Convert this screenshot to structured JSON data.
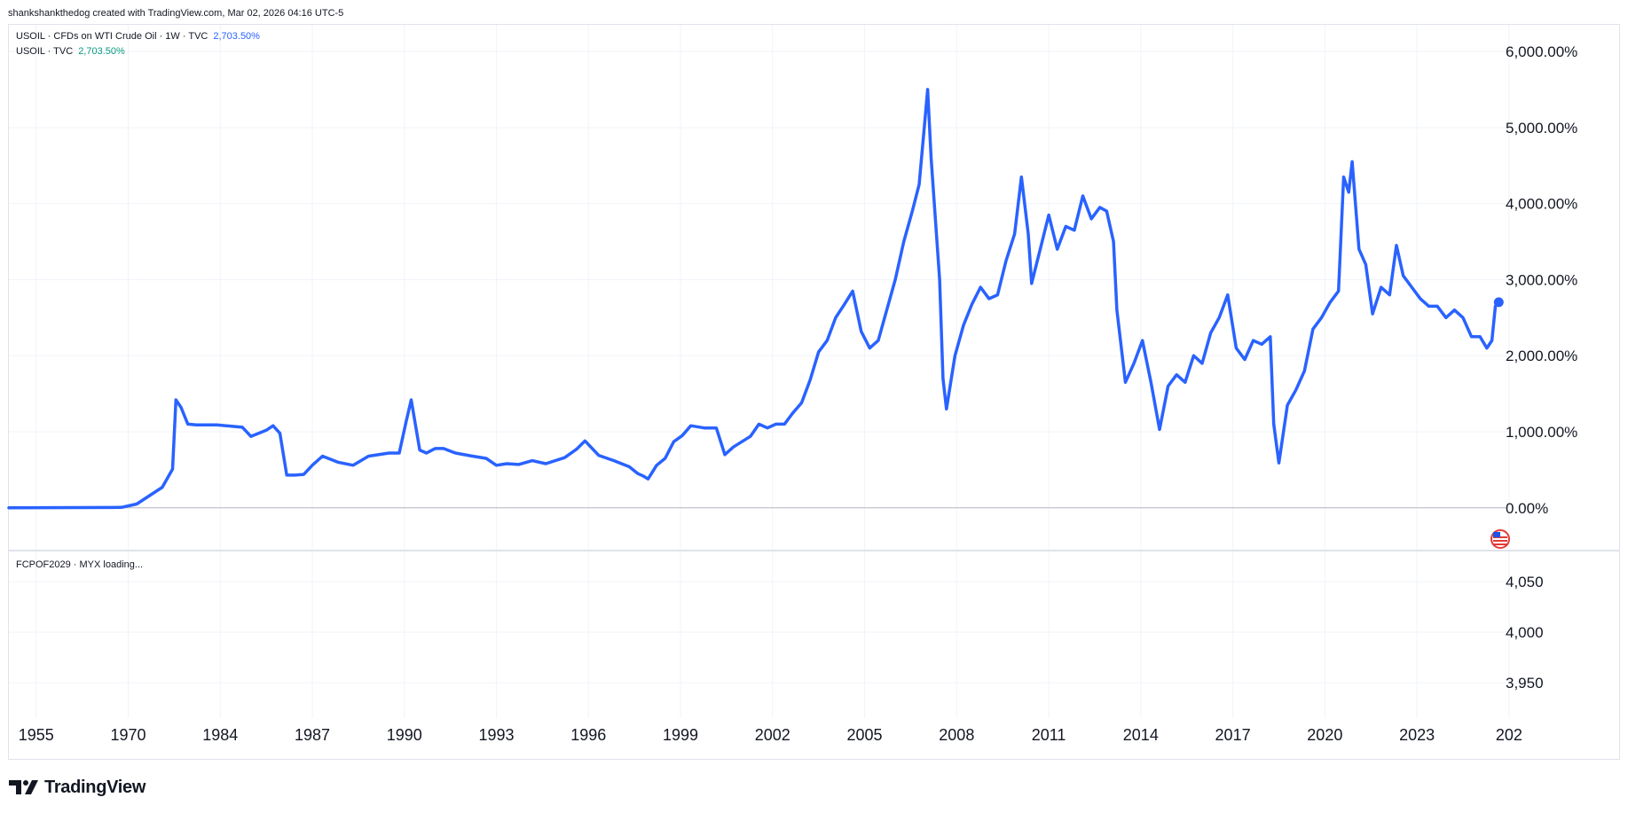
{
  "credit": "shankshankthedog created with TradingView.com, Mar 02, 2026 04:16 UTC-5",
  "legend": {
    "main_label": "USOIL · CFDs on WTI Crude Oil · 1W · TVC",
    "main_value": "2,703.50%",
    "compare_label": "USOIL · TVC",
    "compare_value": "2,703.50%",
    "lower_label": "FCPOF2029 · MYX loading..."
  },
  "brand": "TradingView",
  "colors": {
    "line": "#2962ff",
    "compare_value": "#089981",
    "grid": "#f0f3fa",
    "baseline": "#b2b5be",
    "flag_red": "#e53935"
  },
  "chart_data": {
    "type": "line",
    "series": [
      {
        "values_unit": "%",
        "points": [
          [
            0.0,
            0
          ],
          [
            6.6,
            6
          ],
          [
            7.5,
            50
          ],
          [
            9.0,
            270
          ],
          [
            9.6,
            510
          ],
          [
            9.8,
            1420
          ],
          [
            10.1,
            1320
          ],
          [
            10.5,
            1100
          ],
          [
            11.0,
            1090
          ],
          [
            12.2,
            1090
          ],
          [
            13.7,
            1060
          ],
          [
            14.2,
            940
          ],
          [
            15.1,
            1020
          ],
          [
            15.5,
            1080
          ],
          [
            15.9,
            980
          ],
          [
            16.3,
            430
          ],
          [
            16.8,
            430
          ],
          [
            17.3,
            440
          ],
          [
            17.8,
            560
          ],
          [
            18.4,
            680
          ],
          [
            19.3,
            600
          ],
          [
            20.2,
            560
          ],
          [
            21.1,
            680
          ],
          [
            22.3,
            720
          ],
          [
            22.9,
            720
          ],
          [
            23.3,
            1130
          ],
          [
            23.6,
            1420
          ],
          [
            24.1,
            760
          ],
          [
            24.5,
            720
          ],
          [
            25.0,
            780
          ],
          [
            25.5,
            780
          ],
          [
            26.2,
            720
          ],
          [
            27.2,
            680
          ],
          [
            28.0,
            650
          ],
          [
            28.6,
            560
          ],
          [
            29.2,
            580
          ],
          [
            29.9,
            570
          ],
          [
            30.7,
            620
          ],
          [
            31.5,
            580
          ],
          [
            32.6,
            660
          ],
          [
            33.3,
            770
          ],
          [
            33.8,
            880
          ],
          [
            34.6,
            690
          ],
          [
            35.5,
            620
          ],
          [
            36.4,
            540
          ],
          [
            36.9,
            450
          ],
          [
            37.2,
            420
          ],
          [
            37.5,
            380
          ],
          [
            38.0,
            560
          ],
          [
            38.5,
            650
          ],
          [
            39.0,
            870
          ],
          [
            39.5,
            950
          ],
          [
            40.0,
            1080
          ],
          [
            40.8,
            1050
          ],
          [
            41.5,
            1050
          ],
          [
            42.0,
            700
          ],
          [
            42.5,
            800
          ],
          [
            43.0,
            870
          ],
          [
            43.5,
            940
          ],
          [
            44.0,
            1100
          ],
          [
            44.5,
            1050
          ],
          [
            45.0,
            1100
          ],
          [
            45.5,
            1100
          ],
          [
            46.0,
            1250
          ],
          [
            46.5,
            1380
          ],
          [
            47.0,
            1680
          ],
          [
            47.5,
            2050
          ],
          [
            48.0,
            2200
          ],
          [
            48.5,
            2500
          ],
          [
            49.0,
            2670
          ],
          [
            49.5,
            2850
          ],
          [
            50.0,
            2320
          ],
          [
            50.5,
            2100
          ],
          [
            51.0,
            2200
          ],
          [
            51.5,
            2600
          ],
          [
            52.0,
            3000
          ],
          [
            52.5,
            3500
          ],
          [
            53.0,
            3900
          ],
          [
            53.4,
            4250
          ],
          [
            53.7,
            5000
          ],
          [
            53.9,
            5500
          ],
          [
            54.1,
            4600
          ],
          [
            54.6,
            3000
          ],
          [
            54.8,
            1700
          ],
          [
            55.0,
            1300
          ],
          [
            55.5,
            2000
          ],
          [
            56.0,
            2400
          ],
          [
            56.5,
            2680
          ],
          [
            57.0,
            2900
          ],
          [
            57.5,
            2750
          ],
          [
            58.0,
            2800
          ],
          [
            58.5,
            3250
          ],
          [
            59.0,
            3600
          ],
          [
            59.4,
            4350
          ],
          [
            59.8,
            3600
          ],
          [
            60.0,
            2950
          ],
          [
            60.5,
            3400
          ],
          [
            61.0,
            3850
          ],
          [
            61.5,
            3400
          ],
          [
            62.0,
            3700
          ],
          [
            62.5,
            3650
          ],
          [
            63.0,
            4100
          ],
          [
            63.5,
            3800
          ],
          [
            64.0,
            3950
          ],
          [
            64.4,
            3900
          ],
          [
            64.8,
            3500
          ],
          [
            65.0,
            2600
          ],
          [
            65.5,
            1650
          ],
          [
            66.0,
            1900
          ],
          [
            66.5,
            2200
          ],
          [
            67.0,
            1650
          ],
          [
            67.5,
            1030
          ],
          [
            68.0,
            1600
          ],
          [
            68.5,
            1750
          ],
          [
            69.0,
            1650
          ],
          [
            69.5,
            2000
          ],
          [
            70.0,
            1900
          ],
          [
            70.5,
            2300
          ],
          [
            71.0,
            2500
          ],
          [
            71.5,
            2800
          ],
          [
            72.0,
            2100
          ],
          [
            72.5,
            1950
          ],
          [
            73.0,
            2200
          ],
          [
            73.5,
            2150
          ],
          [
            74.0,
            2250
          ],
          [
            74.2,
            1100
          ],
          [
            74.5,
            590
          ],
          [
            75.0,
            1350
          ],
          [
            75.5,
            1550
          ],
          [
            76.0,
            1800
          ],
          [
            76.5,
            2350
          ],
          [
            77.0,
            2500
          ],
          [
            77.5,
            2700
          ],
          [
            78.0,
            2850
          ],
          [
            78.3,
            4350
          ],
          [
            78.6,
            4150
          ],
          [
            78.8,
            4550
          ],
          [
            79.2,
            3400
          ],
          [
            79.6,
            3200
          ],
          [
            80.0,
            2550
          ],
          [
            80.5,
            2900
          ],
          [
            81.0,
            2800
          ],
          [
            81.4,
            3450
          ],
          [
            81.8,
            3050
          ],
          [
            82.3,
            2900
          ],
          [
            82.8,
            2750
          ],
          [
            83.3,
            2650
          ],
          [
            83.8,
            2650
          ],
          [
            84.3,
            2500
          ],
          [
            84.8,
            2600
          ],
          [
            85.3,
            2500
          ],
          [
            85.8,
            2250
          ],
          [
            86.3,
            2250
          ],
          [
            86.7,
            2100
          ],
          [
            87.0,
            2200
          ],
          [
            87.2,
            2650
          ],
          [
            87.4,
            2703.5
          ]
        ]
      }
    ],
    "y_ticks": [
      "6,000.00%",
      "5,000.00%",
      "4,000.00%",
      "3,000.00%",
      "2,000.00%",
      "1,000.00%",
      "0.00%"
    ],
    "y_tick_values": [
      6000,
      5000,
      4000,
      3000,
      2000,
      1000,
      0
    ],
    "ylim": [
      -550,
      6350
    ],
    "x_ticks": [
      "1955",
      "1970",
      "1984",
      "1987",
      "1990",
      "1993",
      "1996",
      "1999",
      "2002",
      "2005",
      "2008",
      "2011",
      "2014",
      "2017",
      "2020",
      "2023",
      "202"
    ],
    "x_tick_positions": [
      1.6,
      7.0,
      12.4,
      17.8,
      23.2,
      28.6,
      34.0,
      39.4,
      44.8,
      50.2,
      55.6,
      61.0,
      66.4,
      71.8,
      77.2,
      82.6,
      88.0
    ],
    "xlim": [
      0,
      87.8
    ],
    "lower_pane": {
      "y_ticks": [
        "4,050",
        "4,000",
        "3,950"
      ],
      "y_tick_values": [
        4050,
        4000,
        3950
      ],
      "ylim": [
        3915,
        4080
      ]
    },
    "grid": true
  }
}
